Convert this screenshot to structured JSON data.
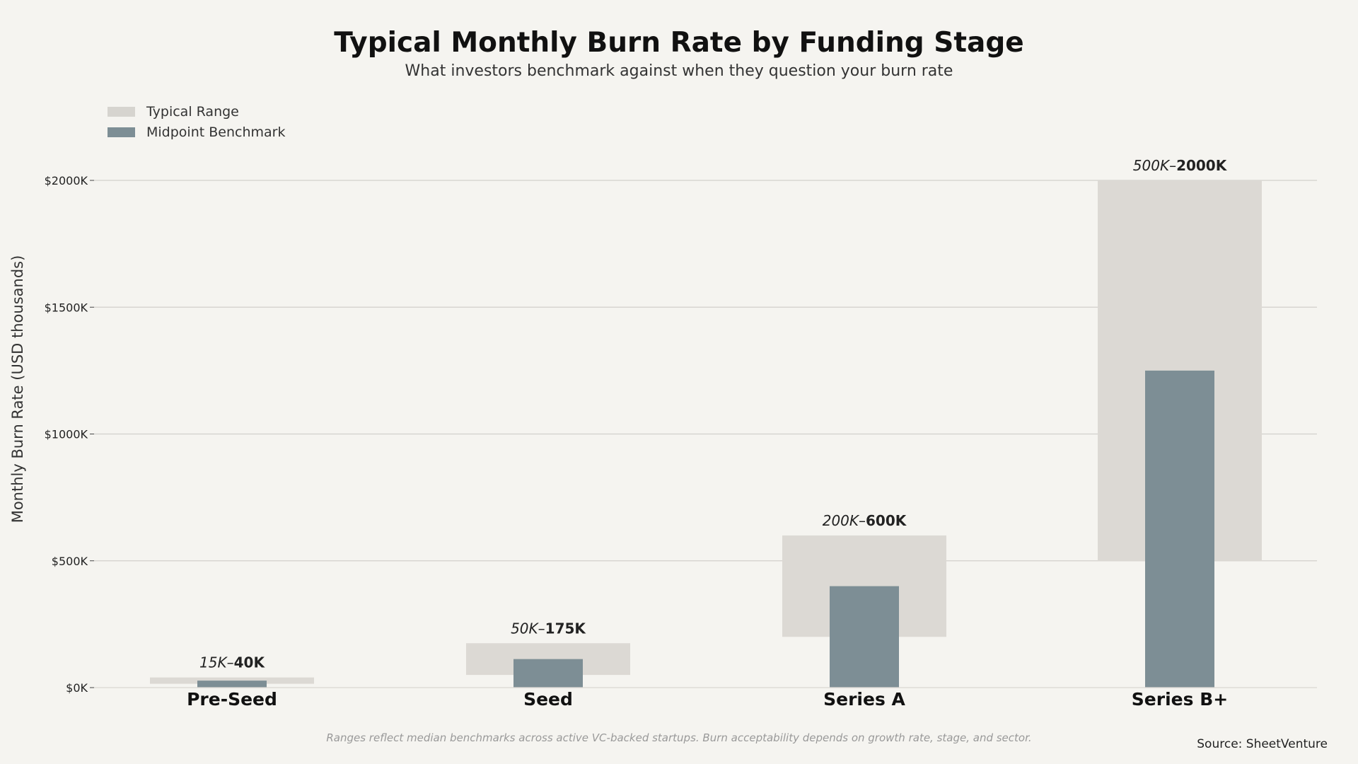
{
  "title": "Typical Monthly Burn Rate by Funding Stage",
  "subtitle": "What investors benchmark against when they question your burn rate",
  "legend": [
    {
      "label": "Typical Range",
      "color": "#d6d4cf"
    },
    {
      "label": "Midpoint Benchmark",
      "color": "#7d8e95"
    }
  ],
  "footnote": "Ranges reflect median benchmarks across active VC-backed startups. Burn acceptability depends on growth rate, stage, and sector.",
  "source": "Source: SheetVenture",
  "colors": {
    "range": "#dcd9d4",
    "midpoint": "#7d8e95",
    "grid": "#d2d0cb",
    "background": "#f5f4f0"
  },
  "chart_data": {
    "type": "bar",
    "ylabel": "Monthly Burn Rate (USD thousands)",
    "xlabel": "",
    "ylim": [
      0,
      2000
    ],
    "yticks": [
      0,
      500,
      1000,
      1500,
      2000
    ],
    "ytick_labels": [
      "$0K",
      "$500K",
      "$1000K",
      "$1500K",
      "$2000K"
    ],
    "grid": true,
    "legend_position": "top-left",
    "categories": [
      "Pre-Seed",
      "Seed",
      "Series A",
      "Series B+"
    ],
    "series": [
      {
        "name": "Typical Range",
        "low": [
          15,
          50,
          200,
          500
        ],
        "high": [
          40,
          175,
          600,
          2000
        ]
      },
      {
        "name": "Midpoint Benchmark",
        "values": [
          27.5,
          112.5,
          400,
          1250
        ]
      }
    ],
    "range_labels": [
      {
        "low": "15K",
        "high": "40K"
      },
      {
        "low": "50K",
        "high": "175K"
      },
      {
        "low": "200K",
        "high": "600K"
      },
      {
        "low": "500K",
        "high": "2000K"
      }
    ]
  }
}
